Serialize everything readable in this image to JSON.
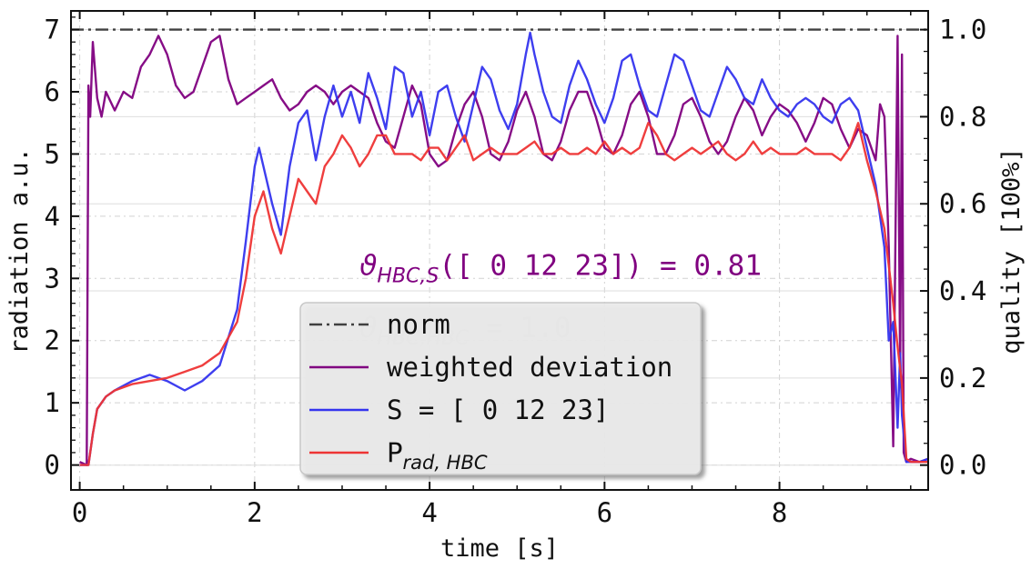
{
  "chart_data": {
    "type": "line",
    "xlabel": "time [s]",
    "ylabel": "radiation a.u.",
    "y2label": "quality [100%]",
    "xlim": [
      -0.1,
      9.7
    ],
    "ylim": [
      -0.4,
      7.3
    ],
    "y2lim": [
      -0.057,
      1.043
    ],
    "x_ticks": [
      0,
      2,
      4,
      6,
      8
    ],
    "y_ticks": [
      0,
      1,
      2,
      3,
      4,
      5,
      6,
      7
    ],
    "y2_ticks": [
      "0.0",
      "0.2",
      "0.4",
      "0.6",
      "0.8",
      "1.0"
    ],
    "grid": true,
    "legend_position": "lower-center",
    "series": [
      {
        "name": "norm",
        "color": "#404040",
        "style": "dash-dot",
        "axis": "right",
        "points": [
          [
            -0.1,
            1.0
          ],
          [
            9.7,
            1.0
          ]
        ]
      },
      {
        "name": "weighted deviation",
        "color": "#800080",
        "style": "solid",
        "axis": "left",
        "points": [
          [
            0.0,
            0.05
          ],
          [
            0.08,
            0.0
          ],
          [
            0.1,
            6.1
          ],
          [
            0.12,
            5.6
          ],
          [
            0.15,
            6.8
          ],
          [
            0.2,
            5.9
          ],
          [
            0.25,
            5.6
          ],
          [
            0.3,
            6.0
          ],
          [
            0.4,
            5.7
          ],
          [
            0.5,
            6.0
          ],
          [
            0.6,
            5.9
          ],
          [
            0.7,
            6.4
          ],
          [
            0.8,
            6.6
          ],
          [
            0.9,
            6.9
          ],
          [
            1.0,
            6.6
          ],
          [
            1.1,
            6.1
          ],
          [
            1.2,
            5.9
          ],
          [
            1.3,
            6.0
          ],
          [
            1.4,
            6.4
          ],
          [
            1.5,
            6.8
          ],
          [
            1.6,
            6.9
          ],
          [
            1.7,
            6.2
          ],
          [
            1.8,
            5.8
          ],
          [
            1.9,
            5.9
          ],
          [
            2.0,
            6.0
          ],
          [
            2.1,
            6.1
          ],
          [
            2.2,
            6.2
          ],
          [
            2.3,
            5.9
          ],
          [
            2.4,
            5.7
          ],
          [
            2.5,
            5.8
          ],
          [
            2.6,
            6.0
          ],
          [
            2.7,
            6.1
          ],
          [
            2.8,
            6.0
          ],
          [
            2.9,
            5.8
          ],
          [
            3.0,
            6.0
          ],
          [
            3.1,
            6.1
          ],
          [
            3.2,
            6.0
          ],
          [
            3.3,
            5.9
          ],
          [
            3.4,
            5.5
          ],
          [
            3.5,
            5.2
          ],
          [
            3.6,
            5.1
          ],
          [
            3.7,
            5.6
          ],
          [
            3.8,
            6.1
          ],
          [
            3.9,
            5.8
          ],
          [
            4.0,
            5.0
          ],
          [
            4.1,
            4.8
          ],
          [
            4.2,
            4.9
          ],
          [
            4.3,
            5.4
          ],
          [
            4.4,
            5.8
          ],
          [
            4.5,
            6.0
          ],
          [
            4.6,
            5.6
          ],
          [
            4.7,
            5.0
          ],
          [
            4.8,
            4.9
          ],
          [
            4.9,
            5.2
          ],
          [
            5.0,
            5.7
          ],
          [
            5.1,
            6.0
          ],
          [
            5.2,
            5.6
          ],
          [
            5.3,
            5.0
          ],
          [
            5.4,
            4.9
          ],
          [
            5.5,
            5.2
          ],
          [
            5.6,
            5.7
          ],
          [
            5.7,
            6.0
          ],
          [
            5.8,
            6.0
          ],
          [
            5.9,
            5.6
          ],
          [
            6.0,
            5.1
          ],
          [
            6.1,
            5.0
          ],
          [
            6.2,
            5.3
          ],
          [
            6.3,
            5.8
          ],
          [
            6.4,
            6.0
          ],
          [
            6.5,
            5.6
          ],
          [
            6.6,
            5.0
          ],
          [
            6.7,
            5.0
          ],
          [
            6.8,
            5.3
          ],
          [
            6.9,
            5.8
          ],
          [
            7.0,
            5.9
          ],
          [
            7.1,
            5.6
          ],
          [
            7.2,
            5.2
          ],
          [
            7.3,
            5.0
          ],
          [
            7.4,
            5.2
          ],
          [
            7.5,
            5.6
          ],
          [
            7.6,
            5.9
          ],
          [
            7.7,
            5.7
          ],
          [
            7.8,
            5.3
          ],
          [
            7.9,
            5.6
          ],
          [
            8.0,
            5.8
          ],
          [
            8.1,
            5.7
          ],
          [
            8.2,
            5.5
          ],
          [
            8.3,
            5.2
          ],
          [
            8.4,
            5.5
          ],
          [
            8.5,
            5.9
          ],
          [
            8.6,
            5.8
          ],
          [
            8.7,
            5.4
          ],
          [
            8.8,
            5.1
          ],
          [
            8.9,
            5.4
          ],
          [
            9.0,
            5.3
          ],
          [
            9.1,
            4.9
          ],
          [
            9.15,
            5.8
          ],
          [
            9.2,
            5.6
          ],
          [
            9.25,
            3.5
          ],
          [
            9.3,
            0.3
          ],
          [
            9.35,
            6.9
          ],
          [
            9.38,
            1.5
          ],
          [
            9.4,
            6.6
          ],
          [
            9.42,
            0.2
          ],
          [
            9.45,
            0.05
          ],
          [
            9.5,
            0.1
          ],
          [
            9.6,
            0.05
          ],
          [
            9.7,
            0.1
          ]
        ]
      },
      {
        "name": "S = [ 0 12 23]",
        "color": "#3434ee",
        "style": "solid",
        "axis": "left",
        "points": [
          [
            0.0,
            0.0
          ],
          [
            0.1,
            0.0
          ],
          [
            0.15,
            0.5
          ],
          [
            0.2,
            0.9
          ],
          [
            0.3,
            1.1
          ],
          [
            0.4,
            1.2
          ],
          [
            0.6,
            1.35
          ],
          [
            0.8,
            1.45
          ],
          [
            1.0,
            1.35
          ],
          [
            1.2,
            1.2
          ],
          [
            1.4,
            1.35
          ],
          [
            1.6,
            1.6
          ],
          [
            1.8,
            2.5
          ],
          [
            1.9,
            3.6
          ],
          [
            2.0,
            4.8
          ],
          [
            2.05,
            5.1
          ],
          [
            2.1,
            4.8
          ],
          [
            2.2,
            4.2
          ],
          [
            2.3,
            3.7
          ],
          [
            2.4,
            4.8
          ],
          [
            2.5,
            5.5
          ],
          [
            2.6,
            5.7
          ],
          [
            2.7,
            4.9
          ],
          [
            2.8,
            5.6
          ],
          [
            2.9,
            6.1
          ],
          [
            3.0,
            5.6
          ],
          [
            3.1,
            6.0
          ],
          [
            3.2,
            5.5
          ],
          [
            3.3,
            6.3
          ],
          [
            3.4,
            5.9
          ],
          [
            3.5,
            5.4
          ],
          [
            3.6,
            6.4
          ],
          [
            3.7,
            6.3
          ],
          [
            3.8,
            5.6
          ],
          [
            3.9,
            6.0
          ],
          [
            4.0,
            5.3
          ],
          [
            4.1,
            6.0
          ],
          [
            4.2,
            6.1
          ],
          [
            4.3,
            5.6
          ],
          [
            4.4,
            5.2
          ],
          [
            4.5,
            5.8
          ],
          [
            4.6,
            6.4
          ],
          [
            4.7,
            6.2
          ],
          [
            4.8,
            5.7
          ],
          [
            4.9,
            5.4
          ],
          [
            5.0,
            5.8
          ],
          [
            5.1,
            6.6
          ],
          [
            5.15,
            6.95
          ],
          [
            5.2,
            6.6
          ],
          [
            5.3,
            6.0
          ],
          [
            5.4,
            5.6
          ],
          [
            5.5,
            5.5
          ],
          [
            5.6,
            6.1
          ],
          [
            5.7,
            6.5
          ],
          [
            5.8,
            6.2
          ],
          [
            5.9,
            5.8
          ],
          [
            6.0,
            5.5
          ],
          [
            6.1,
            5.9
          ],
          [
            6.2,
            6.5
          ],
          [
            6.3,
            6.6
          ],
          [
            6.4,
            6.1
          ],
          [
            6.5,
            5.7
          ],
          [
            6.6,
            5.6
          ],
          [
            6.7,
            6.1
          ],
          [
            6.8,
            6.6
          ],
          [
            6.9,
            6.5
          ],
          [
            7.0,
            6.1
          ],
          [
            7.1,
            5.7
          ],
          [
            7.2,
            5.6
          ],
          [
            7.3,
            6.0
          ],
          [
            7.4,
            6.4
          ],
          [
            7.5,
            6.2
          ],
          [
            7.6,
            5.9
          ],
          [
            7.7,
            5.8
          ],
          [
            7.8,
            6.2
          ],
          [
            7.9,
            5.9
          ],
          [
            8.0,
            5.7
          ],
          [
            8.1,
            5.6
          ],
          [
            8.2,
            5.8
          ],
          [
            8.3,
            5.9
          ],
          [
            8.4,
            5.8
          ],
          [
            8.5,
            5.6
          ],
          [
            8.6,
            5.5
          ],
          [
            8.7,
            5.8
          ],
          [
            8.8,
            5.9
          ],
          [
            8.9,
            5.7
          ],
          [
            9.0,
            5.1
          ],
          [
            9.1,
            4.5
          ],
          [
            9.2,
            3.5
          ],
          [
            9.25,
            2.0
          ],
          [
            9.3,
            2.3
          ],
          [
            9.35,
            0.6
          ],
          [
            9.38,
            1.8
          ],
          [
            9.4,
            0.8
          ],
          [
            9.45,
            0.05
          ],
          [
            9.5,
            0.05
          ],
          [
            9.6,
            0.05
          ],
          [
            9.7,
            0.1
          ]
        ]
      },
      {
        "name": "P_rad,HBC",
        "color": "#ee3434",
        "style": "solid",
        "axis": "left",
        "points": [
          [
            0.0,
            0.0
          ],
          [
            0.1,
            0.0
          ],
          [
            0.15,
            0.5
          ],
          [
            0.2,
            0.9
          ],
          [
            0.3,
            1.1
          ],
          [
            0.4,
            1.2
          ],
          [
            0.6,
            1.3
          ],
          [
            0.8,
            1.35
          ],
          [
            1.0,
            1.4
          ],
          [
            1.2,
            1.5
          ],
          [
            1.4,
            1.6
          ],
          [
            1.6,
            1.8
          ],
          [
            1.8,
            2.3
          ],
          [
            1.9,
            3.0
          ],
          [
            2.0,
            4.0
          ],
          [
            2.1,
            4.4
          ],
          [
            2.2,
            3.8
          ],
          [
            2.3,
            3.4
          ],
          [
            2.4,
            4.0
          ],
          [
            2.5,
            4.6
          ],
          [
            2.6,
            4.4
          ],
          [
            2.7,
            4.2
          ],
          [
            2.8,
            4.8
          ],
          [
            2.9,
            5.0
          ],
          [
            3.0,
            5.3
          ],
          [
            3.1,
            5.1
          ],
          [
            3.2,
            4.8
          ],
          [
            3.3,
            5.0
          ],
          [
            3.4,
            5.3
          ],
          [
            3.5,
            5.3
          ],
          [
            3.6,
            5.0
          ],
          [
            3.7,
            5.0
          ],
          [
            3.8,
            5.0
          ],
          [
            3.9,
            4.9
          ],
          [
            4.0,
            5.1
          ],
          [
            4.1,
            5.1
          ],
          [
            4.2,
            4.9
          ],
          [
            4.3,
            5.1
          ],
          [
            4.4,
            5.3
          ],
          [
            4.5,
            4.9
          ],
          [
            4.6,
            5.0
          ],
          [
            4.7,
            5.1
          ],
          [
            4.8,
            5.0
          ],
          [
            4.9,
            5.0
          ],
          [
            5.0,
            5.0
          ],
          [
            5.1,
            5.1
          ],
          [
            5.2,
            5.2
          ],
          [
            5.3,
            5.0
          ],
          [
            5.4,
            5.0
          ],
          [
            5.5,
            5.1
          ],
          [
            5.6,
            5.0
          ],
          [
            5.7,
            5.0
          ],
          [
            5.8,
            5.1
          ],
          [
            5.9,
            5.0
          ],
          [
            6.0,
            5.2
          ],
          [
            6.1,
            5.0
          ],
          [
            6.2,
            5.1
          ],
          [
            6.3,
            5.0
          ],
          [
            6.4,
            5.1
          ],
          [
            6.5,
            5.5
          ],
          [
            6.6,
            5.3
          ],
          [
            6.7,
            5.0
          ],
          [
            6.8,
            4.9
          ],
          [
            6.9,
            5.0
          ],
          [
            7.0,
            5.1
          ],
          [
            7.1,
            5.0
          ],
          [
            7.2,
            5.1
          ],
          [
            7.3,
            5.2
          ],
          [
            7.4,
            5.0
          ],
          [
            7.5,
            4.9
          ],
          [
            7.6,
            5.0
          ],
          [
            7.7,
            5.2
          ],
          [
            7.8,
            5.0
          ],
          [
            7.9,
            5.1
          ],
          [
            8.0,
            5.0
          ],
          [
            8.1,
            5.0
          ],
          [
            8.2,
            5.0
          ],
          [
            8.3,
            5.1
          ],
          [
            8.4,
            5.0
          ],
          [
            8.5,
            5.0
          ],
          [
            8.6,
            5.0
          ],
          [
            8.7,
            4.9
          ],
          [
            8.8,
            5.1
          ],
          [
            8.9,
            5.5
          ],
          [
            9.0,
            4.9
          ],
          [
            9.1,
            4.4
          ],
          [
            9.2,
            3.8
          ],
          [
            9.3,
            2.6
          ],
          [
            9.35,
            1.9
          ],
          [
            9.4,
            1.3
          ],
          [
            9.45,
            0.1
          ],
          [
            9.5,
            0.05
          ],
          [
            9.7,
            0.05
          ]
        ]
      }
    ],
    "annotations": [
      {
        "base": "ϑ",
        "sub": "HBC,S",
        "rest": "([ 0 12 23]) = 0.81",
        "color": "#800080",
        "x": 3.2,
        "y": 3.2
      },
      {
        "base": "ϑ",
        "sub": "HBC,HBC",
        "rest": " = 1.0",
        "color": "#c8c8c8",
        "x": 3.2,
        "y": 2.2
      }
    ],
    "legend": [
      {
        "label": "norm",
        "series_index": 0
      },
      {
        "label": "weighted deviation",
        "series_index": 1
      },
      {
        "label": "S = [ 0 12 23]",
        "series_index": 2
      },
      {
        "label": "P",
        "label_sub": "rad, HBC",
        "series_index": 3
      }
    ]
  }
}
